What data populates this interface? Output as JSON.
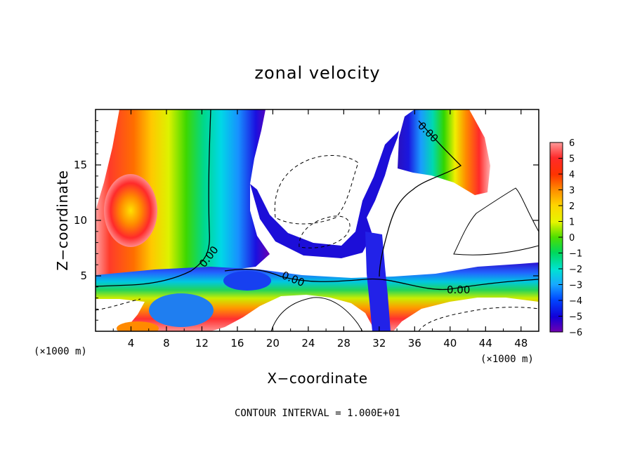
{
  "chart_data": {
    "type": "heatmap",
    "title": "zonal velocity",
    "xlabel": "X−coordinate",
    "ylabel": "Z−coordinate",
    "x_unit_label": "(×1000 m)",
    "z_unit_label": "(×1000 m)",
    "footer": "CONTOUR INTERVAL = 1.000E+01",
    "xlim": [
      0,
      50
    ],
    "ylim": [
      0,
      20
    ],
    "xticks": [
      4,
      8,
      12,
      16,
      20,
      24,
      28,
      32,
      36,
      40,
      44,
      48
    ],
    "yticks": [
      5,
      10,
      15
    ],
    "colorbar": {
      "range": [
        -6,
        6
      ],
      "ticks": [
        6,
        5,
        4,
        3,
        2,
        1,
        0,
        -1,
        -2,
        -3,
        -4,
        -5,
        -6
      ],
      "tick_labels": [
        "6",
        "5",
        "4",
        "3",
        "2",
        "1",
        "0",
        "−1",
        "−2",
        "−3",
        "−4",
        "−5",
        "−6"
      ]
    },
    "contour_labels": [
      "0.00",
      "0.00",
      "0.00",
      "0.00"
    ]
  }
}
